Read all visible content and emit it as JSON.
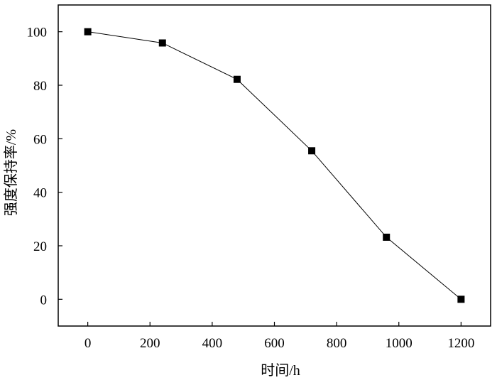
{
  "chart_data": {
    "type": "line",
    "title": "",
    "xlabel": "时间/h",
    "ylabel": "强度保持率/%",
    "xlim": [
      -95,
      1295
    ],
    "ylim": [
      -10,
      110
    ],
    "xticks": [
      0,
      200,
      400,
      600,
      800,
      1000,
      1200
    ],
    "yticks": [
      0,
      20,
      40,
      60,
      80,
      100
    ],
    "xtick_labels": [
      "0",
      "200",
      "400",
      "600",
      "800",
      "1000",
      "1200"
    ],
    "ytick_labels": [
      "0",
      "20",
      "40",
      "60",
      "80",
      "100"
    ],
    "grid": false,
    "legend": "none",
    "marker": "square",
    "line_color": "#000000",
    "marker_color": "#000000",
    "series": [
      {
        "x": [
          0,
          240,
          480,
          720,
          960,
          1200
        ],
        "y": [
          100,
          95.8,
          82.2,
          55.5,
          23.2,
          0
        ]
      }
    ]
  }
}
